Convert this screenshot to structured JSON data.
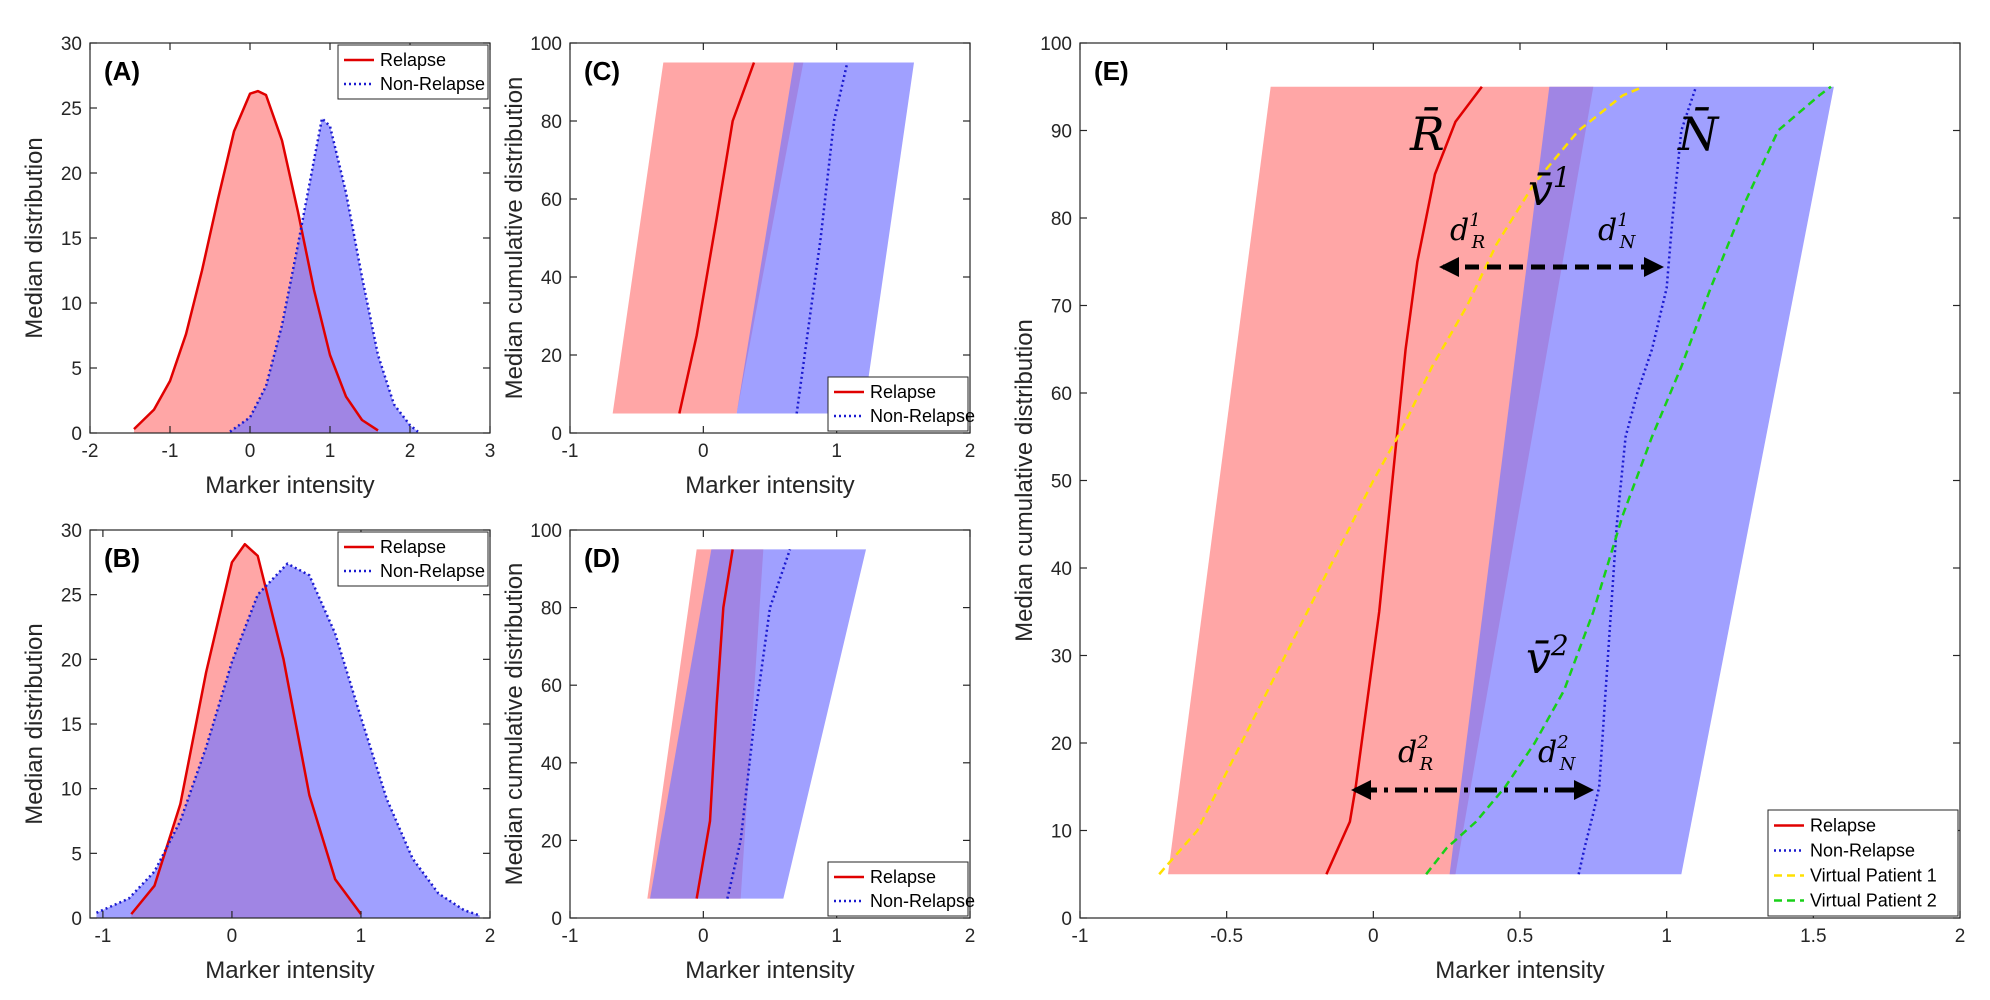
{
  "chart_data": [
    {
      "id": "A",
      "type": "area",
      "panel_label": "(A)",
      "xlabel": "Marker intensity",
      "ylabel": "Median distribution",
      "xlim": [
        -2,
        3
      ],
      "ylim": [
        0,
        30
      ],
      "xticks": [
        -2,
        -1,
        0,
        1,
        2,
        3
      ],
      "yticks": [
        0,
        5,
        10,
        15,
        20,
        25,
        30
      ],
      "legend": {
        "position": "top-right",
        "entries": [
          "Relapse",
          "Non-Relapse"
        ]
      },
      "series": [
        {
          "name": "Relapse",
          "color": "#e00000",
          "fill": "#ff8080",
          "style": "solid",
          "x": [
            -1.45,
            -1.2,
            -1.0,
            -0.8,
            -0.6,
            -0.4,
            -0.2,
            0.0,
            0.1,
            0.2,
            0.4,
            0.6,
            0.8,
            1.0,
            1.2,
            1.4,
            1.6
          ],
          "y": [
            0.3,
            1.8,
            4.0,
            7.6,
            12.5,
            18.0,
            23.2,
            26.1,
            26.3,
            26.0,
            22.5,
            17.0,
            11.0,
            6.0,
            2.8,
            1.0,
            0.2
          ]
        },
        {
          "name": "Non-Relapse",
          "color": "#1a1ad0",
          "fill": "#7878ff",
          "style": "dotted",
          "x": [
            -0.25,
            0.0,
            0.2,
            0.4,
            0.6,
            0.8,
            0.9,
            1.0,
            1.2,
            1.4,
            1.6,
            1.8,
            2.0,
            2.1
          ],
          "y": [
            0.1,
            1.2,
            3.6,
            8.3,
            14.5,
            21.0,
            24.2,
            23.6,
            18.5,
            12.0,
            6.0,
            2.2,
            0.6,
            0.1
          ]
        }
      ]
    },
    {
      "id": "B",
      "type": "area",
      "panel_label": "(B)",
      "xlabel": "Marker intensity",
      "ylabel": "Median distribution",
      "xlim": [
        -1.1,
        2
      ],
      "ylim": [
        0,
        30
      ],
      "xticks": [
        -1,
        0,
        1,
        2
      ],
      "yticks": [
        0,
        5,
        10,
        15,
        20,
        25,
        30
      ],
      "legend": {
        "position": "top-right",
        "entries": [
          "Relapse",
          "Non-Relapse"
        ]
      },
      "series": [
        {
          "name": "Relapse",
          "color": "#e00000",
          "fill": "#ff8080",
          "style": "solid",
          "x": [
            -0.78,
            -0.6,
            -0.4,
            -0.2,
            0.0,
            0.1,
            0.2,
            0.4,
            0.6,
            0.8,
            1.0
          ],
          "y": [
            0.3,
            2.5,
            8.8,
            19.0,
            27.5,
            28.9,
            28.0,
            20.0,
            9.5,
            3.0,
            0.3
          ]
        },
        {
          "name": "Non-Relapse",
          "color": "#1a1ad0",
          "fill": "#7878ff",
          "style": "dotted",
          "x": [
            -1.05,
            -0.8,
            -0.6,
            -0.4,
            -0.2,
            0.0,
            0.2,
            0.43,
            0.6,
            0.8,
            1.0,
            1.2,
            1.4,
            1.6,
            1.8,
            1.92
          ],
          "y": [
            0.4,
            1.5,
            3.6,
            7.5,
            13.2,
            19.8,
            25.0,
            27.4,
            26.5,
            22.0,
            15.5,
            9.2,
            4.6,
            1.9,
            0.6,
            0.2
          ]
        }
      ]
    },
    {
      "id": "C",
      "type": "area",
      "panel_label": "(C)",
      "xlabel": "Marker intensity",
      "ylabel": "Median cumulative distribution",
      "xlim": [
        -1,
        2
      ],
      "ylim": [
        0,
        100
      ],
      "xticks": [
        -1,
        0,
        1,
        2
      ],
      "yticks": [
        0,
        20,
        40,
        60,
        80,
        100
      ],
      "legend": {
        "position": "bottom-right",
        "entries": [
          "Relapse",
          "Non-Relapse"
        ]
      },
      "bands": [
        {
          "name": "Relapse",
          "fill": "#ff8080",
          "y": [
            5,
            95
          ],
          "lower": [
            -0.68,
            -0.3
          ],
          "upper": [
            0.25,
            0.75
          ]
        },
        {
          "name": "Non-Relapse",
          "fill": "#7878ff",
          "y": [
            5,
            95
          ],
          "lower": [
            0.25,
            0.68
          ],
          "upper": [
            1.2,
            1.58
          ]
        }
      ],
      "series": [
        {
          "name": "Relapse",
          "color": "#e00000",
          "style": "solid",
          "x": [
            -0.18,
            -0.05,
            0.1,
            0.22,
            0.38
          ],
          "y": [
            5,
            25,
            55,
            80,
            95
          ]
        },
        {
          "name": "Non-Relapse",
          "color": "#1a1ad0",
          "style": "dotted",
          "x": [
            0.7,
            0.76,
            0.88,
            0.98,
            1.08
          ],
          "y": [
            5,
            20,
            50,
            80,
            95
          ]
        }
      ]
    },
    {
      "id": "D",
      "type": "area",
      "panel_label": "(D)",
      "xlabel": "Marker intensity",
      "ylabel": "Median cumulative distribution",
      "xlim": [
        -1,
        2
      ],
      "ylim": [
        0,
        100
      ],
      "xticks": [
        -1,
        0,
        1,
        2
      ],
      "yticks": [
        0,
        20,
        40,
        60,
        80,
        100
      ],
      "legend": {
        "position": "bottom-right",
        "entries": [
          "Relapse",
          "Non-Relapse"
        ]
      },
      "bands": [
        {
          "name": "Relapse",
          "fill": "#ff8080",
          "y": [
            5,
            95
          ],
          "lower": [
            -0.42,
            -0.05
          ],
          "upper": [
            0.28,
            0.45
          ]
        },
        {
          "name": "Non-Relapse",
          "fill": "#7878ff",
          "y": [
            5,
            95
          ],
          "lower": [
            -0.4,
            0.06
          ],
          "upper": [
            0.6,
            1.22
          ]
        }
      ],
      "series": [
        {
          "name": "Relapse",
          "color": "#e00000",
          "style": "solid",
          "x": [
            -0.05,
            0.05,
            0.1,
            0.15,
            0.22
          ],
          "y": [
            5,
            25,
            55,
            80,
            95
          ]
        },
        {
          "name": "Non-Relapse",
          "color": "#1a1ad0",
          "style": "dotted",
          "x": [
            0.18,
            0.28,
            0.38,
            0.5,
            0.65
          ],
          "y": [
            5,
            20,
            50,
            80,
            95
          ]
        }
      ]
    },
    {
      "id": "E",
      "type": "area",
      "panel_label": "(E)",
      "xlabel": "Marker intensity",
      "ylabel": "Median cumulative distribution",
      "xlim": [
        -1,
        2
      ],
      "ylim": [
        0,
        100
      ],
      "xticks": [
        -1,
        -0.5,
        0,
        0.5,
        1,
        1.5,
        2
      ],
      "xticklabels": [
        "-1",
        "-0.5",
        "0",
        "0.5",
        "1",
        "1.5",
        "2"
      ],
      "yticks": [
        0,
        10,
        20,
        30,
        40,
        50,
        60,
        70,
        80,
        90,
        100
      ],
      "legend": {
        "position": "bottom-right",
        "entries": [
          "Relapse",
          "Non-Relapse",
          "Virtual Patient 1",
          "Virtual Patient 2"
        ]
      },
      "bands": [
        {
          "name": "Relapse",
          "fill": "#ff8080",
          "y": [
            5,
            95
          ],
          "lower": [
            -0.7,
            -0.35
          ],
          "upper": [
            0.28,
            0.75
          ]
        },
        {
          "name": "Non-Relapse",
          "fill": "#7878ff",
          "y": [
            5,
            95
          ],
          "lower": [
            0.26,
            0.6
          ],
          "upper": [
            1.05,
            1.57
          ]
        }
      ],
      "series": [
        {
          "name": "Relapse",
          "color": "#e00000",
          "style": "solid",
          "x": [
            -0.16,
            -0.12,
            -0.08,
            -0.06,
            -0.02,
            0.02,
            0.05,
            0.08,
            0.11,
            0.15,
            0.21,
            0.28,
            0.37
          ],
          "y": [
            5,
            8,
            11,
            15,
            25,
            35,
            45,
            55,
            65,
            75,
            85,
            91,
            95
          ]
        },
        {
          "name": "Non-Relapse",
          "color": "#1a1ad0",
          "style": "dotted",
          "x": [
            0.7,
            0.72,
            0.75,
            0.77,
            0.79,
            0.81,
            0.83,
            0.86,
            0.9,
            0.95,
            1.0,
            1.02,
            1.05,
            1.1
          ],
          "y": [
            5,
            8,
            12,
            15,
            25,
            35,
            45,
            55,
            60,
            65,
            72,
            80,
            90,
            95
          ]
        },
        {
          "name": "Virtual Patient 1",
          "color": "#ffe000",
          "style": "dashed",
          "x": [
            -0.73,
            -0.6,
            -0.45,
            -0.3,
            -0.15,
            0.0,
            0.1,
            0.2,
            0.32,
            0.42,
            0.55,
            0.7,
            0.85,
            0.92
          ],
          "y": [
            5,
            10,
            20,
            30,
            40,
            50,
            56,
            63,
            70,
            77,
            84,
            90,
            94,
            95
          ]
        },
        {
          "name": "Virtual Patient 2",
          "color": "#18d018",
          "style": "dashed",
          "x": [
            0.18,
            0.25,
            0.35,
            0.45,
            0.55,
            0.65,
            0.75,
            0.85,
            0.95,
            1.05,
            1.15,
            1.27,
            1.38,
            1.52,
            1.56
          ],
          "y": [
            5,
            8,
            11,
            15,
            20,
            26,
            35,
            46,
            55,
            63,
            72,
            82,
            90,
            94,
            95
          ]
        }
      ]
    }
  ],
  "annotations": {
    "R": "R̄",
    "N": "N̄",
    "v1": "v̄",
    "v1_sup": "1",
    "v2": "v̄",
    "v2_sup": "2",
    "dR1": "d",
    "dR1_sub": "R",
    "dR1_sup": "1",
    "dN1": "d",
    "dN1_sub": "N",
    "dN1_sup": "1",
    "dR2": "d",
    "dR2_sub": "R",
    "dR2_sup": "2",
    "dN2": "d",
    "dN2_sub": "N",
    "dN2_sup": "2"
  }
}
